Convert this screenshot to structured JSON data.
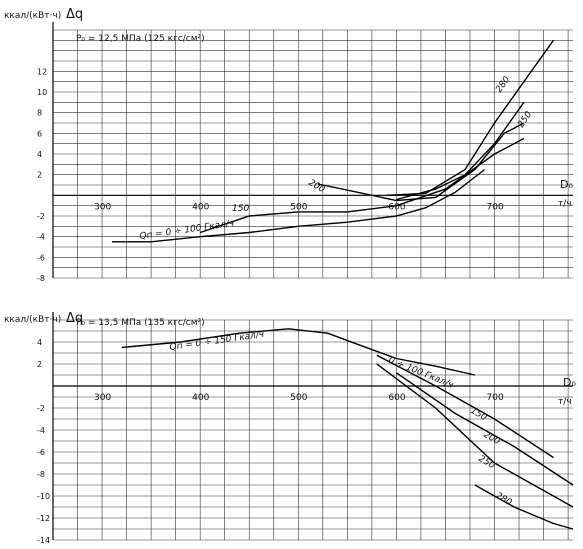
{
  "chart_data": [
    {
      "type": "line",
      "unit_label": "ккал/(кВт·ч)",
      "ylabel": "Δq",
      "condition": "P₀ = 12,5 МПа (125 кгс/см²)",
      "xlabel": "D₀",
      "x_unit": "т/ч",
      "x_ticks": [
        300,
        400,
        500,
        600,
        700
      ],
      "y_ticks": [
        12,
        10,
        8,
        6,
        4,
        2,
        -2,
        -4,
        -6,
        -8
      ],
      "xlim": [
        250,
        780
      ],
      "ylim": [
        -8,
        16
      ],
      "series": [
        {
          "name": "Qп = 0 ÷ 100 Гкал/ч",
          "x": [
            310,
            350,
            400,
            450,
            500,
            550,
            600,
            630,
            660,
            690
          ],
          "y": [
            -4.5,
            -4.5,
            -4.0,
            -3.6,
            -3.0,
            -2.6,
            -2.0,
            -1.2,
            0.3,
            2.5
          ]
        },
        {
          "name": "150",
          "x": [
            400,
            450,
            500,
            550,
            600,
            650,
            700,
            730
          ],
          "y": [
            -3.6,
            -2.0,
            -1.6,
            -1.6,
            -1.0,
            0.6,
            4.0,
            5.5
          ]
        },
        {
          "name": "200",
          "x": [
            520,
            560,
            600,
            640,
            680,
            710,
            730
          ],
          "y": [
            1.1,
            0.3,
            -0.5,
            -0.2,
            2.5,
            6.0,
            7.0
          ]
        },
        {
          "name": "250",
          "x": [
            600,
            640,
            670,
            700,
            730
          ],
          "y": [
            -0.4,
            0.6,
            2.0,
            5.0,
            9.0
          ]
        },
        {
          "name": "280",
          "x": [
            590,
            630,
            670,
            700,
            730,
            760
          ],
          "y": [
            0.0,
            0.2,
            2.5,
            7.0,
            11.0,
            15.0
          ]
        }
      ]
    },
    {
      "type": "line",
      "unit_label": "ккал/(кВт·ч)",
      "ylabel": "Δq",
      "condition": "P₀ = 13,5 МПа (135 кгс/см²)",
      "xlabel": "D₀",
      "x_unit": "т/ч",
      "x_ticks": [
        300,
        400,
        500,
        600,
        700
      ],
      "y_ticks": [
        4,
        2,
        -2,
        -4,
        -6,
        -8,
        -10,
        -12,
        -14
      ],
      "xlim": [
        250,
        780
      ],
      "ylim": [
        -14,
        6
      ],
      "series": [
        {
          "name": "Qп = 0 ÷ 150 Гкал/ч",
          "x": [
            320,
            380,
            440,
            490,
            530,
            560
          ],
          "y": [
            3.5,
            4.0,
            4.8,
            5.2,
            4.8,
            3.8
          ]
        },
        {
          "name": "0 ÷ 100 Гкал/ч",
          "x": [
            560,
            600,
            640,
            680
          ],
          "y": [
            3.8,
            2.5,
            1.8,
            1.0
          ]
        },
        {
          "name": "150",
          "x": [
            580,
            640,
            700,
            760
          ],
          "y": [
            2.8,
            0.0,
            -3.0,
            -6.5
          ]
        },
        {
          "name": "200",
          "x": [
            600,
            660,
            720,
            780
          ],
          "y": [
            1.2,
            -2.5,
            -5.5,
            -9.0
          ]
        },
        {
          "name": "250",
          "x": [
            580,
            640,
            700,
            760,
            780
          ],
          "y": [
            2.0,
            -2.0,
            -7.0,
            -10.0,
            -11.0
          ]
        },
        {
          "name": "280",
          "x": [
            680,
            720,
            760,
            780
          ],
          "y": [
            -9.0,
            -11.0,
            -12.5,
            -13.0
          ]
        }
      ]
    }
  ]
}
